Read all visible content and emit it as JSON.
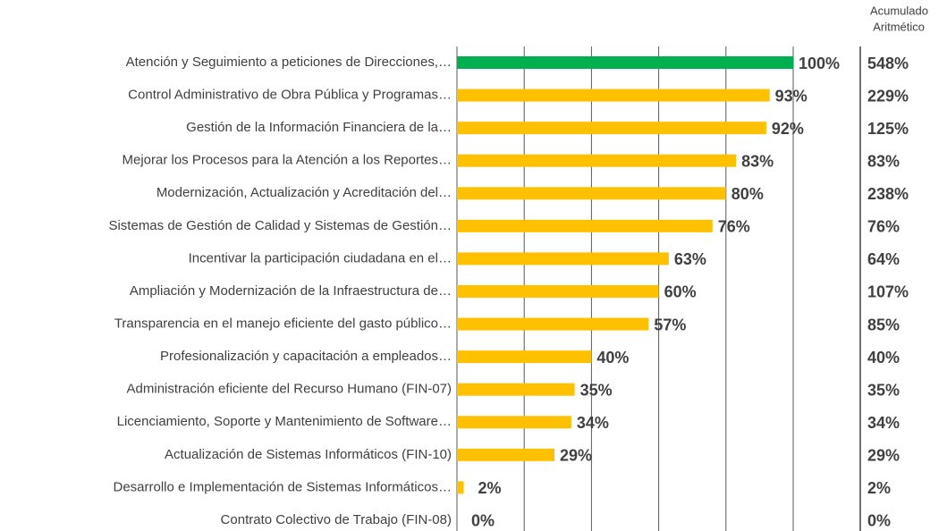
{
  "chart_data": {
    "type": "bar",
    "orientation": "horizontal",
    "side_header": [
      "Acumulado",
      "Aritmético"
    ],
    "categories": [
      "Atención y Seguimiento a peticiones de Direcciones,…",
      "Control Administrativo de Obra Pública y Programas…",
      "Gestión de la Información Financiera de la…",
      "Mejorar los Procesos para la Atención a los Reportes…",
      "Modernización, Actualización y Acreditación del…",
      "Sistemas de Gestión de Calidad y Sistemas de Gestión…",
      "Incentivar la participación ciudadana en el…",
      "Ampliación y Modernización de la Infraestructura de…",
      "Transparencia en el manejo eficiente del gasto público…",
      "Profesionalización y capacitación a empleados…",
      "Administración eficiente del Recurso Humano (FIN-07)",
      "Licenciamiento, Soporte y Mantenimiento de Software…",
      "Actualización de Sistemas Informáticos (FIN-10)",
      "Desarrollo e Implementación de Sistemas Informáticos…",
      "Contrato Colectivo de Trabajo (FIN-08)"
    ],
    "values": [
      100,
      93,
      92,
      83,
      80,
      76,
      63,
      60,
      57,
      40,
      35,
      34,
      29,
      2,
      0
    ],
    "value_labels": [
      "100%",
      "93%",
      "92%",
      "83%",
      "80%",
      "76%",
      "63%",
      "60%",
      "57%",
      "40%",
      "35%",
      "34%",
      "29%",
      "2%",
      "0%"
    ],
    "colors": [
      "#00b050",
      "#ffc000",
      "#ffc000",
      "#ffc000",
      "#ffc000",
      "#ffc000",
      "#ffc000",
      "#ffc000",
      "#ffc000",
      "#ffc000",
      "#ffc000",
      "#ffc000",
      "#ffc000",
      "#ffc000",
      "#ffc000"
    ],
    "side_values": [
      548,
      229,
      125,
      83,
      238,
      76,
      64,
      107,
      85,
      40,
      35,
      34,
      29,
      2,
      0
    ],
    "side_value_labels": [
      "548%",
      "229%",
      "125%",
      "83%",
      "238%",
      "76%",
      "64%",
      "107%",
      "85%",
      "40%",
      "35%",
      "34%",
      "29%",
      "2%",
      "0%"
    ],
    "xlim": [
      0,
      100
    ],
    "xticks": [
      0,
      20,
      40,
      60,
      80,
      100
    ],
    "grid": true
  }
}
